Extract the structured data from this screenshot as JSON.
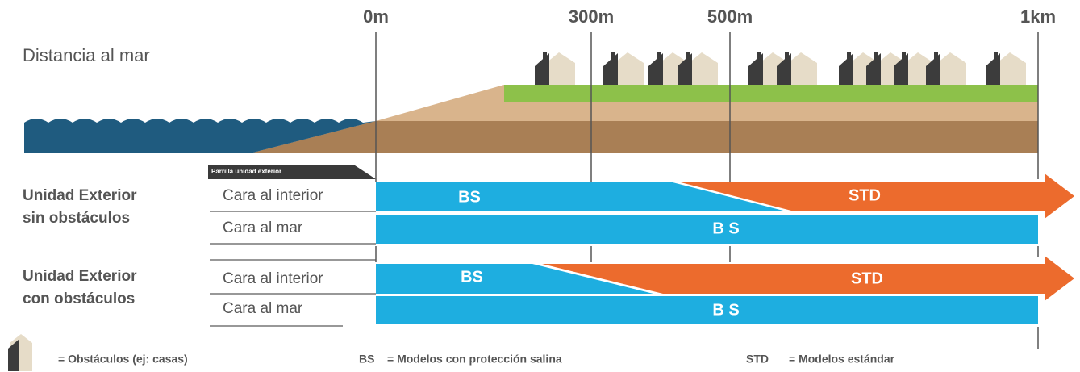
{
  "scale": {
    "title": "Distancia al mar",
    "markers": [
      "0m",
      "300m",
      "500m",
      "1km"
    ]
  },
  "grid_badge": "Parrilla unidad exterior",
  "groups": [
    {
      "lines": [
        "Unidad Exterior",
        "sin obstáculos"
      ],
      "rows": [
        {
          "label": "Cara al interior",
          "left": "BS",
          "right": "STD"
        },
        {
          "label": "Cara al mar",
          "full": "B S"
        }
      ]
    },
    {
      "lines": [
        "Unidad Exterior",
        "con obstáculos"
      ],
      "rows": [
        {
          "label": "Cara al interior",
          "left": "BS",
          "right": "STD"
        },
        {
          "label": "Cara al mar",
          "full": "B S"
        }
      ]
    }
  ],
  "legend": [
    {
      "key": "",
      "text": "= Obstáculos (ej: casas)"
    },
    {
      "key": "BS",
      "text": "= Modelos con protección salina"
    },
    {
      "key": "STD",
      "text": "= Modelos estándar"
    }
  ]
}
